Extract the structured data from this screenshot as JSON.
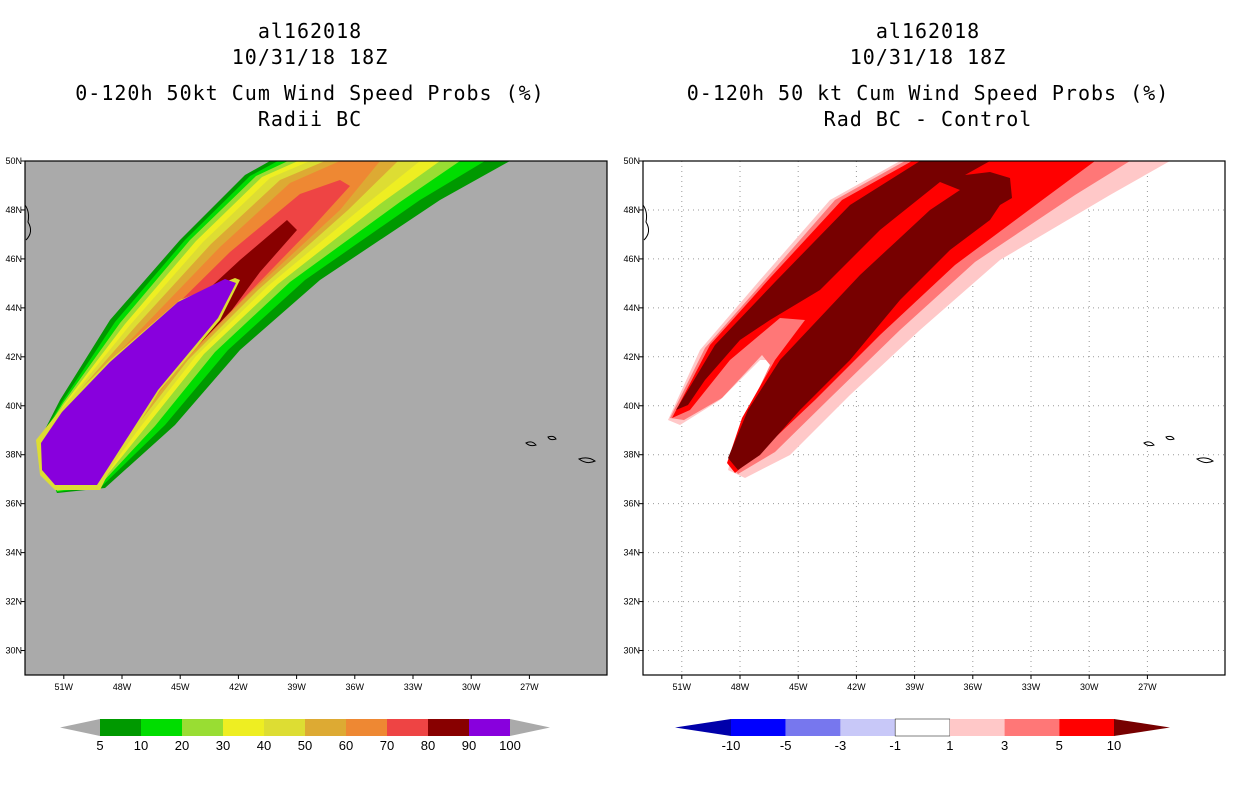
{
  "chart_data": [
    {
      "type": "heatmap",
      "title_lines": [
        "al162018",
        "10/31/18 18Z",
        "0-120h 50kt Cum Wind Speed Probs (%)",
        "Radii BC"
      ],
      "x_ticks": [
        "51W",
        "48W",
        "45W",
        "42W",
        "39W",
        "36W",
        "33W",
        "30W",
        "27W"
      ],
      "y_ticks": [
        "30N",
        "32N",
        "34N",
        "36N",
        "38N",
        "40N",
        "42N",
        "44N",
        "46N",
        "48N",
        "50N"
      ],
      "xlim": [
        -53,
        -23
      ],
      "ylim": [
        29,
        50
      ],
      "background": "#aaaaaa",
      "colorbar": {
        "labels": [
          "5",
          "10",
          "20",
          "30",
          "40",
          "50",
          "60",
          "70",
          "80",
          "90",
          "100"
        ],
        "colors": [
          "#009900",
          "#00dd00",
          "#99dd33",
          "#eeee22",
          "#dddd33",
          "#ddaa33",
          "#ee8833",
          "#ee4444",
          "#880000",
          "#8800dd"
        ]
      }
    },
    {
      "type": "heatmap",
      "title_lines": [
        "al162018",
        "10/31/18 18Z",
        "0-120h 50 kt Cum Wind Speed Probs (%)",
        "Rad BC - Control"
      ],
      "x_ticks": [
        "51W",
        "48W",
        "45W",
        "42W",
        "39W",
        "36W",
        "33W",
        "30W",
        "27W"
      ],
      "y_ticks": [
        "30N",
        "32N",
        "34N",
        "36N",
        "38N",
        "40N",
        "42N",
        "44N",
        "46N",
        "48N",
        "50N"
      ],
      "xlim": [
        -53,
        -23
      ],
      "ylim": [
        29,
        50
      ],
      "background": "#ffffff",
      "colorbar": {
        "labels": [
          "-10",
          "-5",
          "-3",
          "-1",
          "1",
          "3",
          "5",
          "10"
        ],
        "colors": [
          "#0000aa",
          "#0000ff",
          "#7777ee",
          "#c8c8f8",
          "#ffffff",
          "#ffc8c8",
          "#ff7777",
          "#ff0000",
          "#770000"
        ]
      }
    }
  ]
}
